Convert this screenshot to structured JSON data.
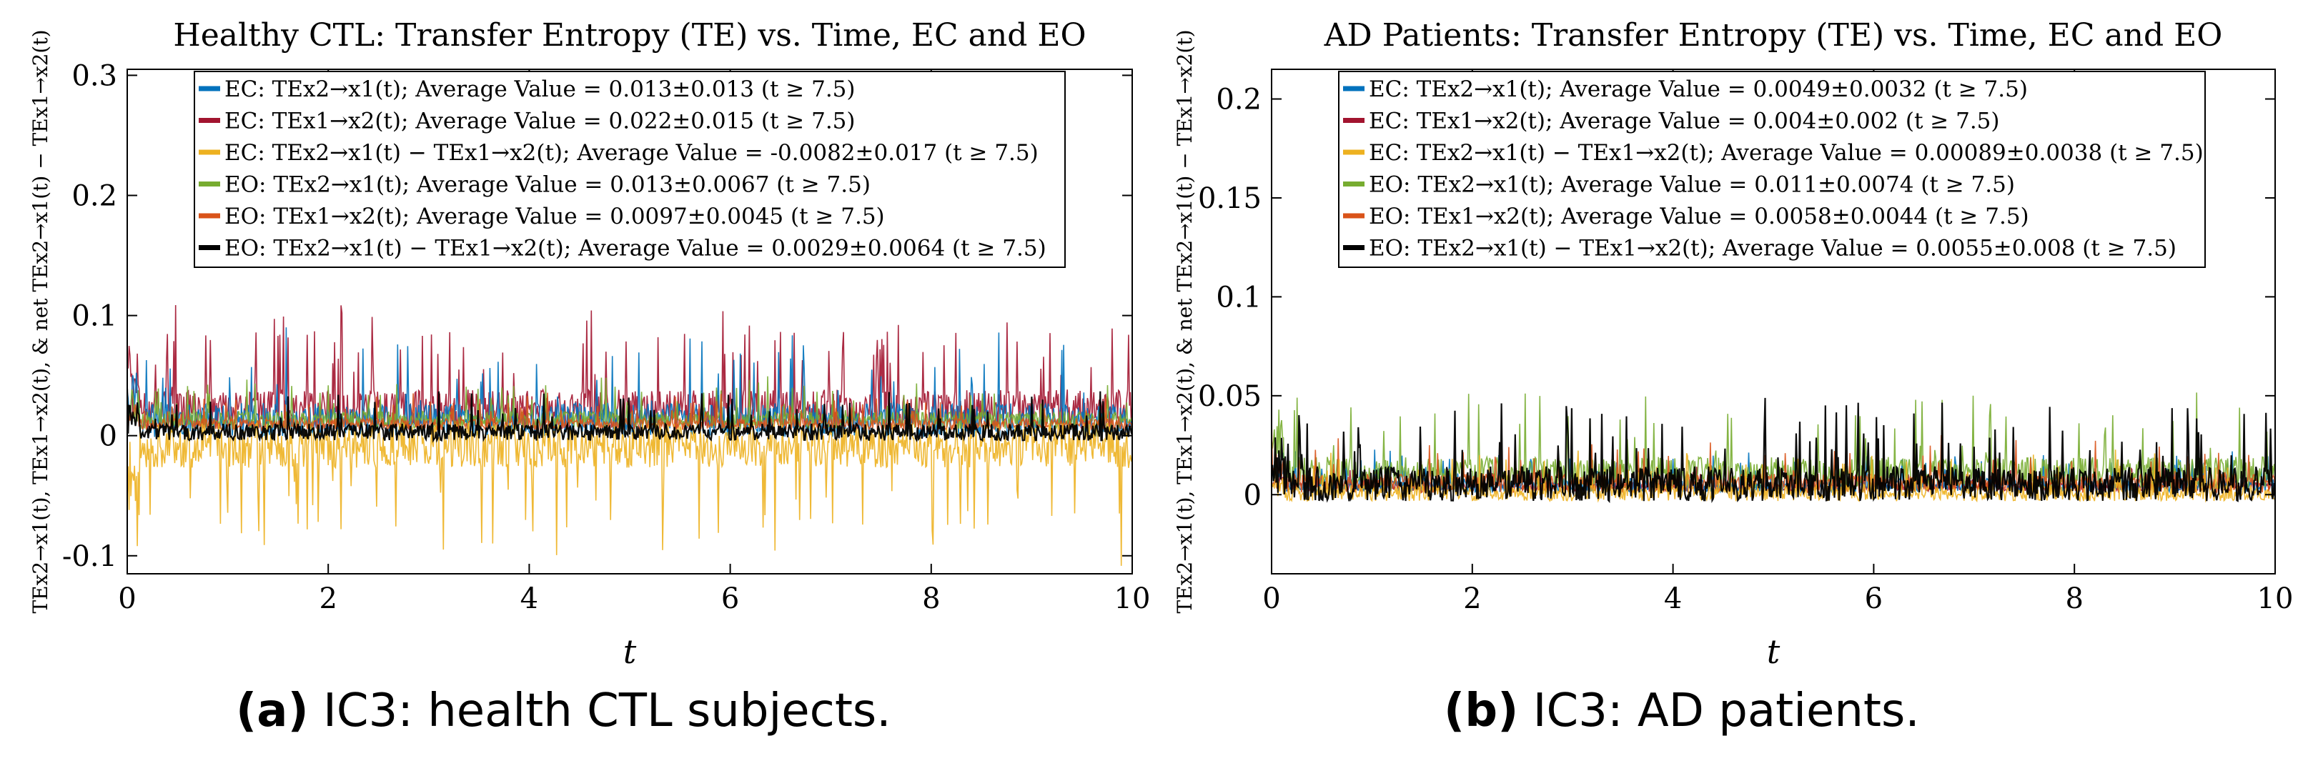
{
  "colors": {
    "blue": "#0072BD",
    "red": "#A2142F",
    "yellow": "#EDB120",
    "green": "#77AC30",
    "orange": "#D95319",
    "black": "#000000"
  },
  "captions": [
    {
      "tag": "(a)",
      "text": " IC3: health CTL subjects."
    },
    {
      "tag": "(b)",
      "text": " IC3: AD patients."
    }
  ],
  "chart_data": [
    {
      "type": "line",
      "title": "Healthy CTL: Transfer Entropy (TE) vs. Time, EC and EO",
      "xlabel": "t",
      "ylabel": "TEx2→x1(t), TEx1→x2(t), & net TEx2→x1(t) − TEx1→x2(t)",
      "xlim": [
        0,
        10
      ],
      "ylim": [
        -0.115,
        0.305
      ],
      "xticks": [
        0,
        2,
        4,
        6,
        8,
        10
      ],
      "xticklabels": [
        "0",
        "2",
        "4",
        "6",
        "8",
        "10"
      ],
      "yticks": [
        -0.1,
        0,
        0.1,
        0.2,
        0.3
      ],
      "yticklabels": [
        "-0.1",
        "0",
        "0.1",
        "0.2",
        "0.3"
      ],
      "legend_position": "top-center",
      "series": [
        {
          "name": "EC: TEx2→x1(t)",
          "mean": 0.013,
          "std": 0.013,
          "color": "blue",
          "legend": "EC: TEx2→x1(t); Average Value = 0.013±0.013 (t ≥ 7.5)"
        },
        {
          "name": "EC: TEx1→x2(t)",
          "mean": 0.022,
          "std": 0.015,
          "color": "red",
          "legend": "EC: TEx1→x2(t); Average Value = 0.022±0.015 (t ≥ 7.5)"
        },
        {
          "name": "EC: TEx2→x1(t) − TEx1→x2(t)",
          "mean": -0.0082,
          "std": 0.017,
          "color": "yellow",
          "legend": "EC: TEx2→x1(t) − TEx1→x2(t); Average Value = -0.0082±0.017 (t ≥ 7.5)"
        },
        {
          "name": "EO: TEx2→x1(t)",
          "mean": 0.013,
          "std": 0.0067,
          "color": "green",
          "legend": "EO: TEx2→x1(t); Average Value = 0.013±0.0067 (t ≥ 7.5)"
        },
        {
          "name": "EO: TEx1→x2(t)",
          "mean": 0.0097,
          "std": 0.0045,
          "color": "orange",
          "legend": "EO: TEx1→x2(t); Average Value = 0.0097±0.0045 (t ≥ 7.5)"
        },
        {
          "name": "EO: TEx2→x1(t) − TEx1→x2(t)",
          "mean": 0.0029,
          "std": 0.0064,
          "color": "black",
          "legend": "EO: TEx2→x1(t) − TEx1→x2(t); Average Value = 0.0029±0.0064 (t ≥ 7.5)"
        }
      ]
    },
    {
      "type": "line",
      "title": "AD Patients: Transfer Entropy (TE) vs. Time, EC and EO",
      "xlabel": "t",
      "ylabel": "TEx2→x1(t), TEx1→x2(t), & net TEx2→x1(t) − TEx1→x2(t)",
      "xlim": [
        0,
        10
      ],
      "ylim": [
        -0.04,
        0.215
      ],
      "xticks": [
        0,
        2,
        4,
        6,
        8,
        10
      ],
      "xticklabels": [
        "0",
        "2",
        "4",
        "6",
        "8",
        "10"
      ],
      "yticks": [
        0,
        0.05,
        0.1,
        0.15,
        0.2
      ],
      "yticklabels": [
        "0",
        "0.05",
        "0.1",
        "0.15",
        "0.2"
      ],
      "legend_position": "top-center",
      "series": [
        {
          "name": "EC: TEx2→x1(t)",
          "mean": 0.0049,
          "std": 0.0032,
          "color": "blue",
          "legend": "EC: TEx2→x1(t); Average Value = 0.0049±0.0032 (t ≥ 7.5)"
        },
        {
          "name": "EC: TEx1→x2(t)",
          "mean": 0.004,
          "std": 0.002,
          "color": "red",
          "legend": "EC: TEx1→x2(t); Average Value = 0.004±0.002 (t ≥ 7.5)"
        },
        {
          "name": "EC: TEx2→x1(t) − TEx1→x2(t)",
          "mean": 0.00089,
          "std": 0.0038,
          "color": "yellow",
          "legend": "EC: TEx2→x1(t) − TEx1→x2(t); Average Value = 0.00089±0.0038 (t ≥ 7.5)"
        },
        {
          "name": "EO: TEx2→x1(t)",
          "mean": 0.011,
          "std": 0.0074,
          "color": "green",
          "legend": "EO: TEx2→x1(t); Average Value = 0.011±0.0074 (t ≥ 7.5)"
        },
        {
          "name": "EO: TEx1→x2(t)",
          "mean": 0.0058,
          "std": 0.0044,
          "color": "orange",
          "legend": "EO: TEx1→x2(t); Average Value = 0.0058±0.0044 (t ≥ 7.5)"
        },
        {
          "name": "EO: TEx2→x1(t) − TEx1→x2(t)",
          "mean": 0.0055,
          "std": 0.008,
          "color": "black",
          "legend": "EO: TEx2→x1(t) − TEx1→x2(t); Average Value = 0.0055±0.008 (t ≥ 7.5)"
        }
      ]
    }
  ]
}
